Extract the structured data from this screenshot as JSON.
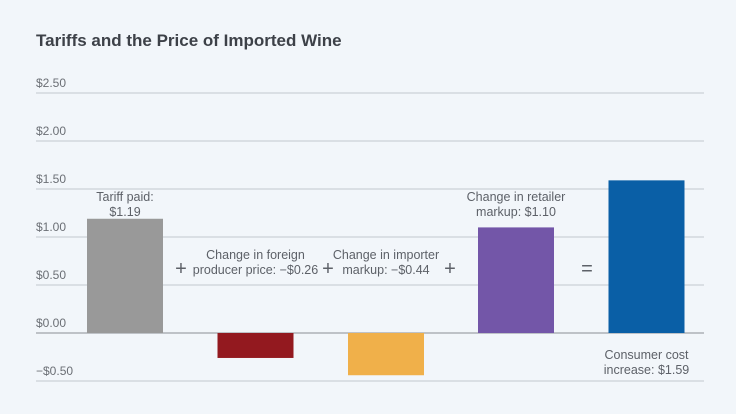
{
  "chart_data": {
    "type": "bar",
    "title": "Tariffs and the Price of Imported Wine",
    "ylim": [
      -0.5,
      2.5
    ],
    "yticks": [
      -0.5,
      0,
      0.5,
      1.0,
      1.5,
      2.0,
      2.5
    ],
    "ytick_labels": [
      "−$0.50",
      "$0.00",
      "$0.50",
      "$1.00",
      "$1.50",
      "$2.00",
      "$2.50"
    ],
    "grid": true,
    "categories": [
      "Tariff paid",
      "Change in foreign producer price",
      "Change in importer markup",
      "Change in retailer markup",
      "Consumer cost increase"
    ],
    "values": [
      1.19,
      -0.26,
      -0.44,
      1.1,
      1.59
    ],
    "colors": [
      "#999999",
      "#93191f",
      "#f0b04a",
      "#7356a8",
      "#0a5fa6"
    ],
    "data_labels": [
      [
        "Tariff paid:",
        "$1.19"
      ],
      [
        "Change in foreign",
        "producer price: −$0.26"
      ],
      [
        "Change in importer",
        "markup: −$0.44"
      ],
      [
        "Change in retailer",
        "markup: $1.10"
      ],
      [
        "Consumer cost",
        "increase: $1.59"
      ]
    ],
    "operators": [
      "+",
      "+",
      "+",
      "="
    ]
  }
}
